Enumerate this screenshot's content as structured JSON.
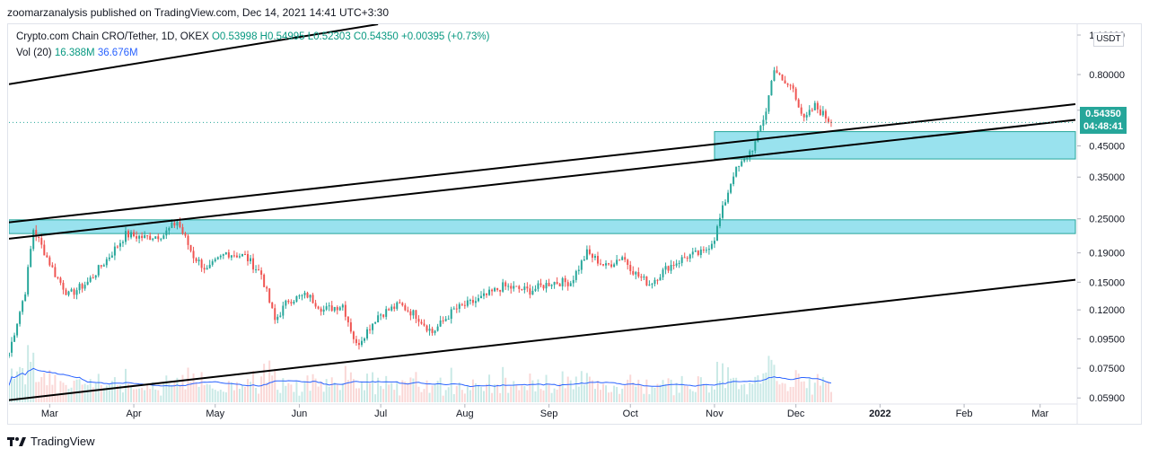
{
  "header": {
    "publish_line": "zoomarzanalysis published on TradingView.com, Dec 14, 2021 14:41 UTC+3:30"
  },
  "legend": {
    "symbol": "Crypto.com Chain CRO/Tether, 1D, OKEX",
    "open": "O0.53998",
    "high": "H0.54995",
    "low": "L0.52303",
    "close": "C0.54350",
    "change": "+0.00395 (+0.73%)",
    "vol_label": "Vol (20)",
    "vol_value": "16.388M",
    "vol_ma": "36.676M"
  },
  "price_axis": {
    "currency": "USDT",
    "current_price": "0.54350",
    "countdown": "04:48:41"
  },
  "footer": {
    "brand": "TradingView"
  },
  "colors": {
    "up": "#26a69a",
    "down": "#ef5350",
    "zone_fill": "#7fdbea",
    "zone_stroke": "#26a69a",
    "vol_ma": "#2962ff"
  },
  "chart_data": {
    "type": "candlestick",
    "y_scale": "log",
    "ylim": [
      0.057,
      1.2
    ],
    "y_ticks": [
      "1.10000",
      "0.80000",
      "0.60000",
      "0.45000",
      "0.35000",
      "0.25000",
      "0.19000",
      "0.15000",
      "0.12000",
      "0.09500",
      "0.07500",
      "0.05900"
    ],
    "x_ticks": [
      "Mar",
      "Apr",
      "May",
      "Jun",
      "Jul",
      "Aug",
      "Sep",
      "Oct",
      "Nov",
      "Dec",
      "2022",
      "Feb",
      "Mar"
    ],
    "x_range": [
      "2021-02-14",
      "2022-03-14"
    ],
    "price_path": [
      {
        "date": "2021-02-14",
        "price": 0.085
      },
      {
        "date": "2021-02-20",
        "price": 0.14
      },
      {
        "date": "2021-02-23",
        "price": 0.23
      },
      {
        "date": "2021-03-03",
        "price": 0.16
      },
      {
        "date": "2021-03-08",
        "price": 0.135
      },
      {
        "date": "2021-03-15",
        "price": 0.15
      },
      {
        "date": "2021-03-22",
        "price": 0.18
      },
      {
        "date": "2021-03-29",
        "price": 0.22
      },
      {
        "date": "2021-04-05",
        "price": 0.215
      },
      {
        "date": "2021-04-12",
        "price": 0.22
      },
      {
        "date": "2021-04-17",
        "price": 0.245
      },
      {
        "date": "2021-04-23",
        "price": 0.185
      },
      {
        "date": "2021-04-28",
        "price": 0.165
      },
      {
        "date": "2021-05-05",
        "price": 0.19
      },
      {
        "date": "2021-05-12",
        "price": 0.185
      },
      {
        "date": "2021-05-18",
        "price": 0.16
      },
      {
        "date": "2021-05-23",
        "price": 0.11
      },
      {
        "date": "2021-05-28",
        "price": 0.13
      },
      {
        "date": "2021-06-04",
        "price": 0.135
      },
      {
        "date": "2021-06-10",
        "price": 0.12
      },
      {
        "date": "2021-06-17",
        "price": 0.125
      },
      {
        "date": "2021-06-22",
        "price": 0.09
      },
      {
        "date": "2021-06-30",
        "price": 0.115
      },
      {
        "date": "2021-07-08",
        "price": 0.125
      },
      {
        "date": "2021-07-14",
        "price": 0.115
      },
      {
        "date": "2021-07-20",
        "price": 0.1
      },
      {
        "date": "2021-07-28",
        "price": 0.12
      },
      {
        "date": "2021-08-06",
        "price": 0.13
      },
      {
        "date": "2021-08-15",
        "price": 0.145
      },
      {
        "date": "2021-08-25",
        "price": 0.14
      },
      {
        "date": "2021-09-02",
        "price": 0.15
      },
      {
        "date": "2021-09-09",
        "price": 0.15
      },
      {
        "date": "2021-09-15",
        "price": 0.19
      },
      {
        "date": "2021-09-22",
        "price": 0.17
      },
      {
        "date": "2021-09-28",
        "price": 0.185
      },
      {
        "date": "2021-10-03",
        "price": 0.16
      },
      {
        "date": "2021-10-08",
        "price": 0.148
      },
      {
        "date": "2021-10-15",
        "price": 0.17
      },
      {
        "date": "2021-10-22",
        "price": 0.185
      },
      {
        "date": "2021-10-28",
        "price": 0.19
      },
      {
        "date": "2021-11-01",
        "price": 0.215
      },
      {
        "date": "2021-11-04",
        "price": 0.27
      },
      {
        "date": "2021-11-08",
        "price": 0.36
      },
      {
        "date": "2021-11-12",
        "price": 0.4
      },
      {
        "date": "2021-11-16",
        "price": 0.46
      },
      {
        "date": "2021-11-20",
        "price": 0.6
      },
      {
        "date": "2021-11-23",
        "price": 0.85
      },
      {
        "date": "2021-11-26",
        "price": 0.75
      },
      {
        "date": "2021-11-30",
        "price": 0.72
      },
      {
        "date": "2021-12-04",
        "price": 0.55
      },
      {
        "date": "2021-12-08",
        "price": 0.62
      },
      {
        "date": "2021-12-14",
        "price": 0.5435
      }
    ],
    "zones": [
      {
        "from_date": "2021-11-01",
        "to_date": "2022-03-14",
        "low": 0.405,
        "high": 0.505
      },
      {
        "from_date": "2021-02-14",
        "to_date": "2022-03-14",
        "low": 0.222,
        "high": 0.248
      }
    ],
    "trendlines": [
      {
        "p1": {
          "date": "2021-02-14",
          "price": 0.74
        },
        "p2": {
          "date": "2021-06-30",
          "price": 1.2
        }
      },
      {
        "p1": {
          "date": "2021-02-14",
          "price": 0.243
        },
        "p2": {
          "date": "2022-03-14",
          "price": 0.63
        }
      },
      {
        "p1": {
          "date": "2021-02-14",
          "price": 0.213
        },
        "p2": {
          "date": "2022-03-14",
          "price": 0.555
        }
      },
      {
        "p1": {
          "date": "2021-02-14",
          "price": 0.058
        },
        "p2": {
          "date": "2022-03-14",
          "price": 0.153
        }
      }
    ],
    "last_price": 0.5435
  }
}
